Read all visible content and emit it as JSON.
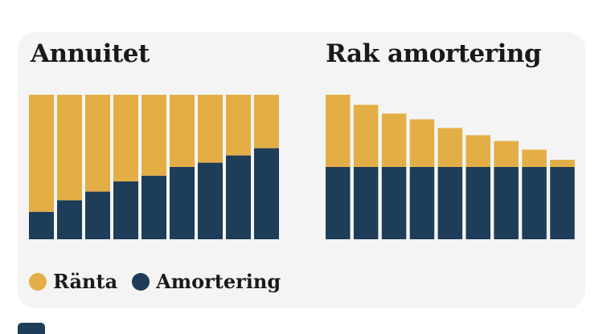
{
  "colors": {
    "ranta": "#e3ae46",
    "amortering": "#1d3d59",
    "card": "#f4f4f4"
  },
  "legend": [
    {
      "label": "Ränta",
      "color": "#e3ae46"
    },
    {
      "label": "Amortering",
      "color": "#1d3d59"
    }
  ],
  "chart_data": [
    {
      "type": "bar",
      "stacked": true,
      "title": "Annuitet",
      "ylim": [
        0,
        100
      ],
      "series": [
        {
          "name": "Amortering",
          "values": [
            19,
            27,
            33,
            40,
            44,
            50,
            53,
            58,
            63
          ]
        },
        {
          "name": "Ränta",
          "values": [
            81,
            73,
            67,
            60,
            56,
            50,
            47,
            42,
            37
          ]
        }
      ]
    },
    {
      "type": "bar",
      "stacked": true,
      "title": "Rak amortering",
      "ylim": [
        0,
        100
      ],
      "series": [
        {
          "name": "Amortering",
          "values": [
            50,
            50,
            50,
            50,
            50,
            50,
            50,
            50,
            50
          ]
        },
        {
          "name": "Ränta",
          "values": [
            50,
            43,
            37,
            33,
            27,
            22,
            18,
            12,
            5
          ]
        }
      ]
    }
  ]
}
